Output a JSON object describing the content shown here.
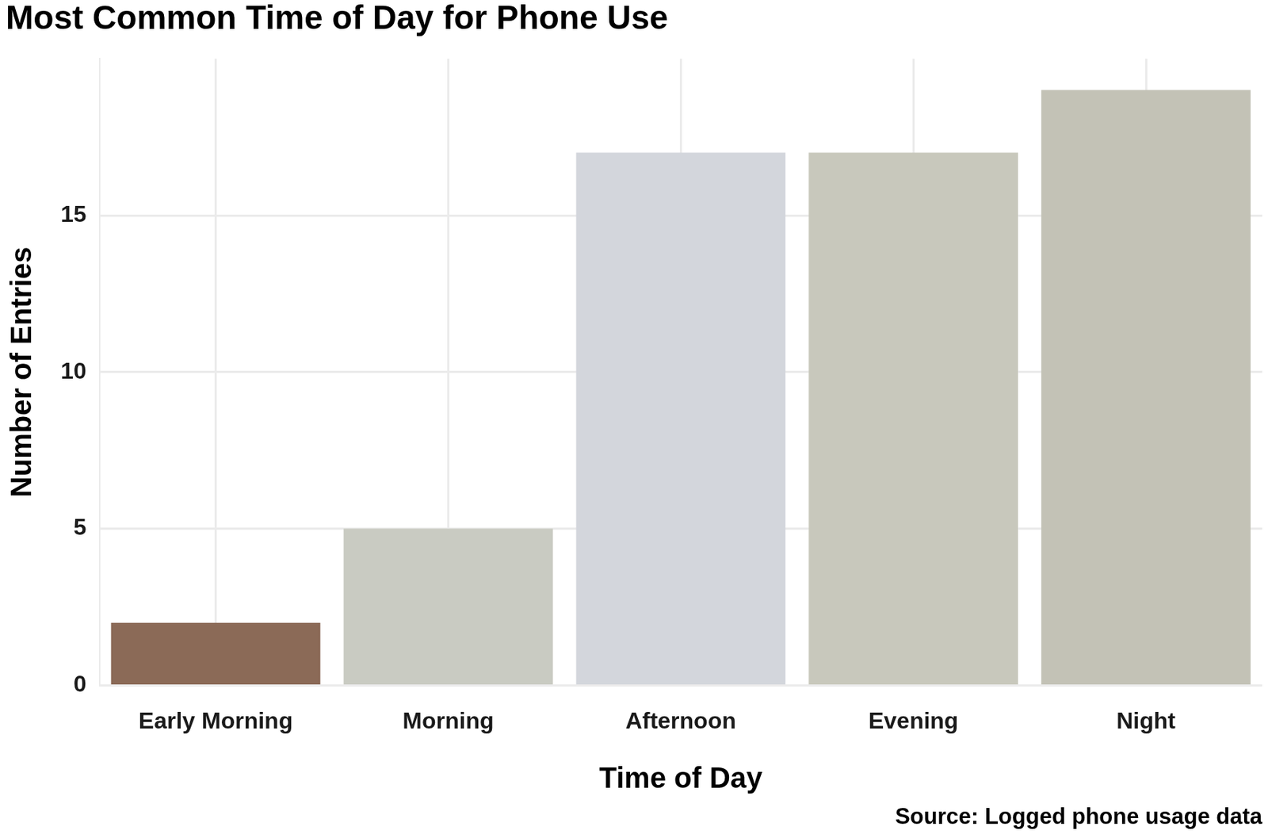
{
  "chart_data": {
    "type": "bar",
    "title": "Most Common Time of Day for Phone Use",
    "x_label": "Time of Day",
    "y_label": "Number of Entries",
    "caption": "Source: Logged phone usage data",
    "categories": [
      "Early Morning",
      "Morning",
      "Afternoon",
      "Evening",
      "Night"
    ],
    "values": [
      2,
      5,
      17,
      17,
      19
    ],
    "colors": [
      "#8b6a57",
      "#c9cbc2",
      "#d3d6dc",
      "#c8c8bc",
      "#c3c2b6"
    ],
    "ylim": [
      0,
      20
    ],
    "yticks": [
      0,
      5,
      10,
      15
    ],
    "grid": true
  }
}
